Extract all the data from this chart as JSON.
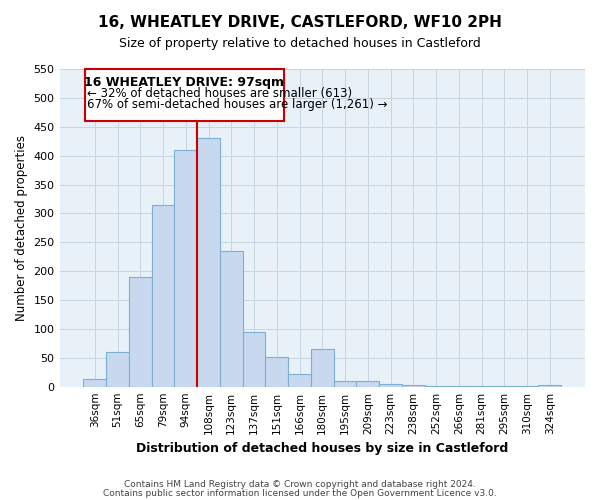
{
  "title": "16, WHEATLEY DRIVE, CASTLEFORD, WF10 2PH",
  "subtitle": "Size of property relative to detached houses in Castleford",
  "xlabel": "Distribution of detached houses by size in Castleford",
  "ylabel": "Number of detached properties",
  "categories": [
    "36sqm",
    "51sqm",
    "65sqm",
    "79sqm",
    "94sqm",
    "108sqm",
    "123sqm",
    "137sqm",
    "151sqm",
    "166sqm",
    "180sqm",
    "195sqm",
    "209sqm",
    "223sqm",
    "238sqm",
    "252sqm",
    "266sqm",
    "281sqm",
    "295sqm",
    "310sqm",
    "324sqm"
  ],
  "values": [
    13,
    60,
    190,
    315,
    410,
    430,
    235,
    95,
    52,
    22,
    65,
    10,
    10,
    5,
    3,
    2,
    1,
    1,
    1,
    1,
    3
  ],
  "bar_color": "#c8d9ef",
  "bar_edge_color": "#7bafd4",
  "vline_x_index": 4,
  "vline_color": "#cc0000",
  "ylim": [
    0,
    550
  ],
  "yticks": [
    0,
    50,
    100,
    150,
    200,
    250,
    300,
    350,
    400,
    450,
    500,
    550
  ],
  "annotation_title": "16 WHEATLEY DRIVE: 97sqm",
  "annotation_line1": "← 32% of detached houses are smaller (613)",
  "annotation_line2": "67% of semi-detached houses are larger (1,261) →",
  "footnote1": "Contains HM Land Registry data © Crown copyright and database right 2024.",
  "footnote2": "Contains public sector information licensed under the Open Government Licence v3.0.",
  "background_color": "#ffffff",
  "grid_color": "#c8d4e0",
  "axes_bg_color": "#e8f0f8"
}
